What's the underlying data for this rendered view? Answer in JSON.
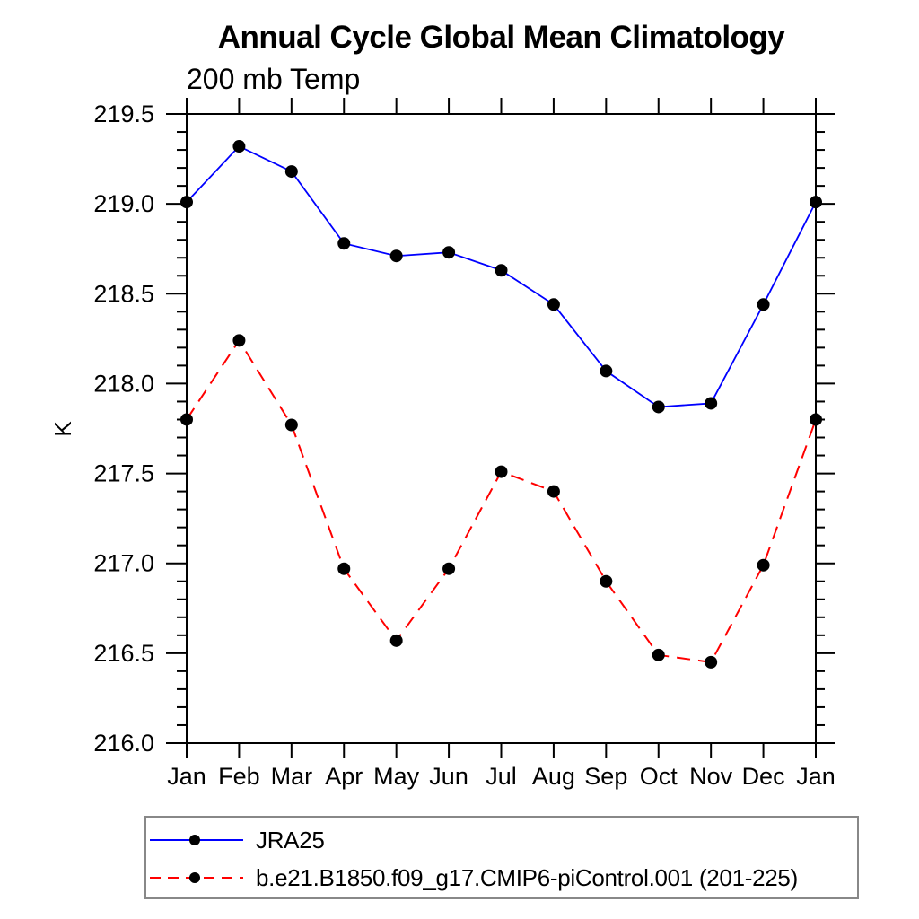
{
  "chart_data": {
    "type": "line",
    "title": "Annual Cycle Global Mean Climatology",
    "subtitle": "200 mb Temp",
    "ylabel": "K",
    "xlabel": "",
    "categories": [
      "Jan",
      "Feb",
      "Mar",
      "Apr",
      "May",
      "Jun",
      "Jul",
      "Aug",
      "Sep",
      "Oct",
      "Nov",
      "Dec",
      "Jan"
    ],
    "series": [
      {
        "name": "JRA25",
        "color": "#0000ff",
        "line_style": "solid",
        "marker": "filled-circle",
        "marker_color": "#000000",
        "values": [
          219.01,
          219.32,
          219.18,
          218.78,
          218.71,
          218.73,
          218.63,
          218.44,
          218.07,
          217.87,
          217.89,
          218.44,
          219.01
        ]
      },
      {
        "name": "b.e21.B1850.f09_g17.CMIP6-piControl.001 (201-225)",
        "color": "#ff0000",
        "line_style": "dashed",
        "marker": "filled-circle",
        "marker_color": "#000000",
        "values": [
          217.8,
          218.24,
          217.77,
          216.97,
          216.57,
          216.97,
          217.51,
          217.4,
          216.9,
          216.49,
          216.45,
          216.99,
          217.8
        ]
      }
    ],
    "ylim": [
      216.0,
      219.5
    ],
    "ytick_major": 0.5,
    "ytick_minor": 0.1,
    "ytick_labels": [
      "216.0",
      "216.5",
      "217.0",
      "217.5",
      "218.0",
      "218.5",
      "219.0",
      "219.5"
    ],
    "grid": false,
    "frame": true,
    "legend_position": "bottom-left"
  }
}
